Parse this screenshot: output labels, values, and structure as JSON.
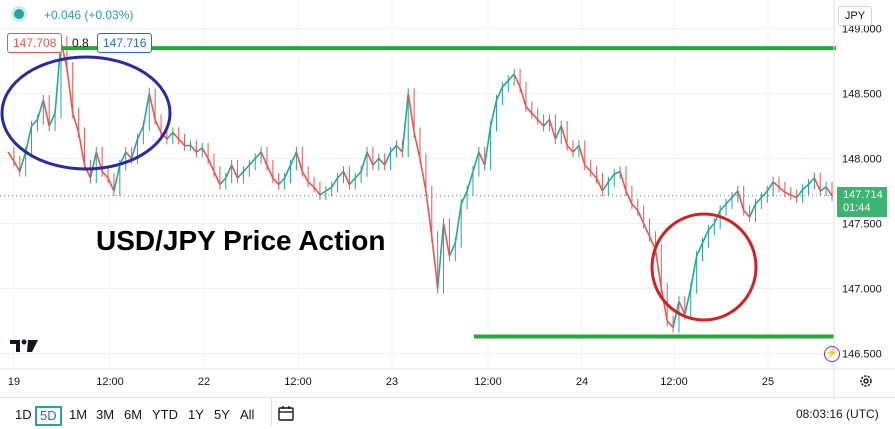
{
  "header": {
    "change_text": "+0.046 (+0.03%)",
    "bid": "147.708",
    "spread": "0.8",
    "ask": "147.716",
    "currency": "JPY"
  },
  "price_tag": {
    "price": "147.714",
    "countdown": "01:44"
  },
  "annotations": {
    "overlay_title": "USD/JPY Price Action",
    "resistance_level": 148.85,
    "support_level": 146.63
  },
  "toolbar": {
    "timeframes": [
      "1D",
      "5D",
      "1M",
      "3M",
      "6M",
      "YTD",
      "1Y",
      "5Y",
      "All"
    ],
    "active_timeframe": "5D",
    "clock": "08:03:16 (UTC)"
  },
  "colors": {
    "up": "#26a69a",
    "down": "#ef5350",
    "line_green": "#22aa33",
    "ellipse_blue": "#2a2aa8",
    "circle_red": "#d42020",
    "price_tag": "#3cb371"
  },
  "chart_data": {
    "type": "line",
    "title": "USD/JPY Price Action",
    "ylim": [
      146.38,
      149.22
    ],
    "yticks": [
      146.5,
      147.0,
      147.5,
      148.0,
      148.5,
      149.0
    ],
    "ytick_labels": [
      "146.500",
      "147.000",
      "147.500",
      "148.000",
      "148.500",
      "149.000"
    ],
    "xticks": [
      "19",
      "12:00",
      "22",
      "12:00",
      "23",
      "12:00",
      "24",
      "12:00",
      "25"
    ],
    "grid": true,
    "series": [
      {
        "x": [
          0,
          3,
          6,
          9,
          12,
          15,
          18,
          21,
          24,
          27,
          30,
          33,
          36,
          39,
          42,
          45,
          48,
          51,
          54,
          57,
          60,
          63,
          66,
          69,
          72,
          75,
          78,
          81,
          84,
          87,
          90,
          93,
          96,
          99,
          102,
          105,
          108,
          111,
          114,
          117,
          120,
          123,
          126,
          129,
          132,
          135,
          138,
          141,
          144,
          147,
          150,
          153,
          156,
          159,
          162,
          165,
          168,
          171,
          174,
          177,
          180,
          183,
          186,
          189,
          192,
          195,
          198,
          201,
          204,
          207,
          210,
          213,
          216,
          219,
          222,
          225,
          228,
          231,
          234,
          237,
          240,
          243,
          246,
          249,
          252,
          255,
          258,
          261,
          264,
          267,
          270,
          273,
          276,
          279,
          282,
          285,
          288,
          291,
          294,
          297,
          300,
          303,
          306,
          309,
          312,
          315,
          318,
          321,
          324,
          327,
          330,
          333,
          336,
          339,
          342,
          345,
          348,
          351,
          354,
          357,
          360,
          363,
          366,
          369,
          372,
          375,
          378,
          381,
          384,
          387,
          390,
          393,
          396,
          399,
          402,
          405,
          408,
          411,
          414,
          417,
          420
        ],
        "values": [
          148.05,
          147.98,
          147.9,
          148.05,
          148.25,
          148.3,
          148.45,
          148.25,
          148.35,
          148.9,
          148.7,
          148.35,
          148.2,
          147.95,
          147.85,
          148.05,
          147.9,
          147.85,
          147.75,
          147.95,
          148.05,
          148.0,
          148.15,
          148.25,
          148.5,
          148.3,
          148.2,
          148.15,
          148.2,
          148.15,
          148.1,
          148.1,
          148.05,
          148.08,
          148.0,
          147.9,
          147.8,
          147.85,
          147.95,
          147.85,
          147.9,
          147.95,
          148.0,
          148.05,
          147.95,
          147.85,
          147.8,
          147.85,
          147.95,
          148.05,
          147.9,
          147.82,
          147.78,
          147.72,
          147.75,
          147.78,
          147.85,
          147.9,
          147.8,
          147.85,
          147.9,
          148.05,
          147.95,
          148.0,
          147.95,
          148.05,
          148.1,
          148.05,
          148.5,
          148.2,
          148.0,
          147.75,
          147.4,
          147.0,
          147.5,
          147.25,
          147.35,
          147.65,
          147.75,
          147.9,
          148.05,
          147.95,
          148.25,
          148.45,
          148.55,
          148.6,
          148.65,
          148.55,
          148.4,
          148.35,
          148.3,
          148.25,
          148.3,
          148.15,
          148.25,
          148.1,
          148.05,
          148.1,
          147.95,
          147.9,
          147.85,
          147.75,
          147.82,
          147.88,
          147.9,
          147.75,
          147.65,
          147.6,
          147.5,
          147.4,
          147.3,
          147.0,
          146.75,
          146.7,
          146.9,
          146.8,
          147.0,
          147.25,
          147.35,
          147.45,
          147.5,
          147.6,
          147.65,
          147.7,
          147.75,
          147.6,
          147.55,
          147.65,
          147.7,
          147.75,
          147.82,
          147.78,
          147.74,
          147.72,
          147.7,
          147.76,
          147.8,
          147.85,
          147.75,
          147.78,
          147.714
        ]
      }
    ]
  }
}
